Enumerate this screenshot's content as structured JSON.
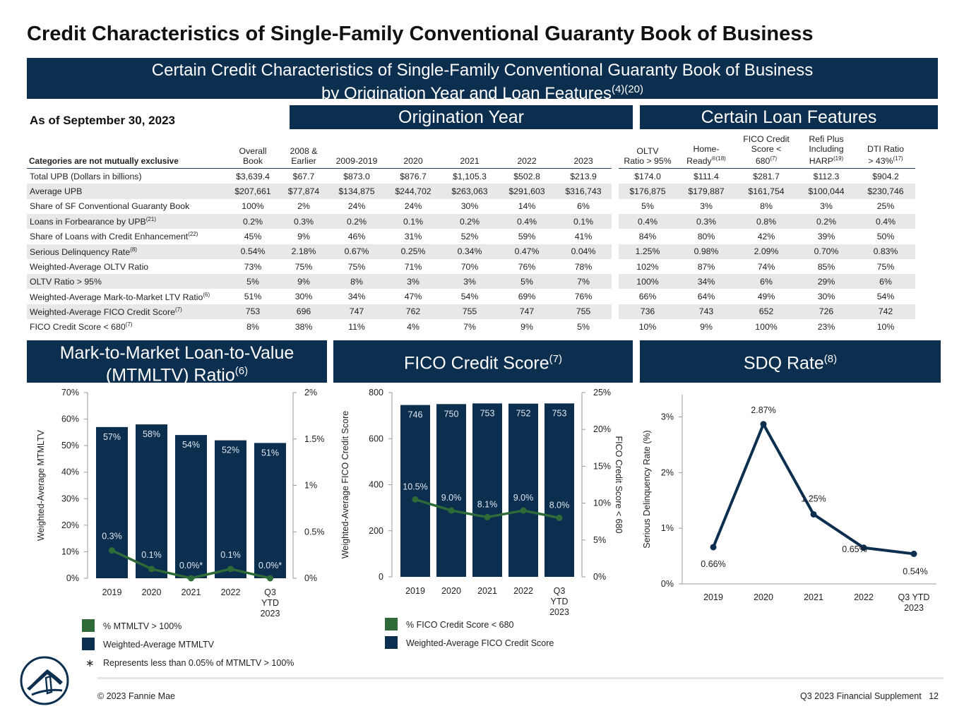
{
  "title": "Credit Characteristics of Single-Family Conventional Guaranty Book of Business",
  "banner": {
    "line1": "Certain Credit Characteristics of Single-Family Conventional Guaranty Book of Business",
    "line2": "by Origination Year and Loan Features",
    "line2_sup": "(4)(20)"
  },
  "as_of": "As of September 30, 2023",
  "origination_header": "Origination Year",
  "features_header": "Certain Loan Features",
  "table": {
    "category_header": "Categories are not mutually exclusive",
    "columns": [
      {
        "line1": "Overall",
        "line2": "Book"
      },
      {
        "line1": "2008 &",
        "line2": "Earlier"
      },
      {
        "line1": "",
        "line2": "2009-2019"
      },
      {
        "line1": "",
        "line2": "2020"
      },
      {
        "line1": "",
        "line2": "2021"
      },
      {
        "line1": "",
        "line2": "2022"
      },
      {
        "line1": "",
        "line2": "2023"
      },
      {
        "line1": "OLTV",
        "line2": "Ratio > 95%"
      },
      {
        "line1": "Home-",
        "line2": "Ready",
        "sup": "®(18)"
      },
      {
        "line0": "FICO Credit",
        "line1": "Score <",
        "line2": "680",
        "sup": "(7)"
      },
      {
        "line0": "Refi Plus",
        "line1": "Including",
        "line2": "HARP",
        "sup": "(19)"
      },
      {
        "line1": "DTI Ratio",
        "line2": "> 43%",
        "sup": "(17)"
      }
    ],
    "rows": [
      {
        "label": "Total UPB (Dollars in billions)",
        "sup": "",
        "values": [
          "$3,639.4",
          "$67.7",
          "$873.0",
          "$876.7",
          "$1,105.3",
          "$502.8",
          "$213.9",
          "$174.0",
          "$111.4",
          "$281.7",
          "$112.3",
          "$904.2"
        ]
      },
      {
        "label": "Average UPB",
        "sup": "",
        "values": [
          "$207,661",
          "$77,874",
          "$134,875",
          "$244,702",
          "$263,063",
          "$291,603",
          "$316,743",
          "$176,875",
          "$179,887",
          "$161,754",
          "$100,044",
          "$230,746"
        ]
      },
      {
        "label": "Share of SF Conventional Guaranty Book",
        "sup": "",
        "values": [
          "100%",
          "2%",
          "24%",
          "24%",
          "30%",
          "14%",
          "6%",
          "5%",
          "3%",
          "8%",
          "3%",
          "25%"
        ]
      },
      {
        "label": "Loans in Forbearance by UPB",
        "sup": "(21)",
        "values": [
          "0.2%",
          "0.3%",
          "0.2%",
          "0.1%",
          "0.2%",
          "0.4%",
          "0.1%",
          "0.4%",
          "0.3%",
          "0.8%",
          "0.2%",
          "0.4%"
        ]
      },
      {
        "label": "Share of Loans with Credit Enhancement",
        "sup": "(22)",
        "values": [
          "45%",
          "9%",
          "46%",
          "31%",
          "52%",
          "59%",
          "41%",
          "84%",
          "80%",
          "42%",
          "39%",
          "50%"
        ]
      },
      {
        "label": "Serious Delinquency Rate",
        "sup": "(8)",
        "values": [
          "0.54%",
          "2.18%",
          "0.67%",
          "0.25%",
          "0.34%",
          "0.47%",
          "0.04%",
          "1.25%",
          "0.98%",
          "2.09%",
          "0.70%",
          "0.83%"
        ]
      },
      {
        "label": "Weighted-Average OLTV Ratio",
        "sup": "",
        "values": [
          "73%",
          "75%",
          "75%",
          "71%",
          "70%",
          "76%",
          "78%",
          "102%",
          "87%",
          "74%",
          "85%",
          "75%"
        ]
      },
      {
        "label": "OLTV Ratio > 95%",
        "sup": "",
        "values": [
          "5%",
          "9%",
          "8%",
          "3%",
          "3%",
          "5%",
          "7%",
          "100%",
          "34%",
          "6%",
          "29%",
          "6%"
        ]
      },
      {
        "label": "Weighted-Average Mark-to-Market LTV Ratio",
        "sup": "(6)",
        "values": [
          "51%",
          "30%",
          "34%",
          "47%",
          "54%",
          "69%",
          "76%",
          "66%",
          "64%",
          "49%",
          "30%",
          "54%"
        ]
      },
      {
        "label": "Weighted-Average FICO Credit Score",
        "sup": "(7)",
        "values": [
          "753",
          "696",
          "747",
          "762",
          "755",
          "747",
          "755",
          "736",
          "743",
          "652",
          "726",
          "742"
        ]
      },
      {
        "label": "FICO Credit Score < 680",
        "sup": "(7)",
        "values": [
          "8%",
          "38%",
          "11%",
          "4%",
          "7%",
          "9%",
          "5%",
          "10%",
          "9%",
          "100%",
          "23%",
          "10%"
        ]
      }
    ]
  },
  "mtm_box": {
    "line1": "Mark-to-Market Loan-to-Value",
    "line2": "(MTMLTV) Ratio",
    "sup": "(6)"
  },
  "fico_box": {
    "text": "FICO Credit Score",
    "sup": "(7)"
  },
  "sdq_box": {
    "text": "SDQ Rate",
    "sup": "(8)"
  },
  "chart_data": [
    {
      "type": "bar",
      "categories": [
        "2019",
        "2020",
        "2021",
        "2022",
        "Q3 YTD 2023"
      ],
      "series": [
        {
          "name": "Weighted-Average MTMLTV",
          "type": "bar",
          "axis": "left",
          "values": [
            57,
            58,
            54,
            52,
            51
          ],
          "labels": [
            "57%",
            "58%",
            "54%",
            "52%",
            "51%"
          ]
        },
        {
          "name": "% MTMLTV > 100%",
          "type": "line",
          "axis": "right",
          "values": [
            0.3,
            0.1,
            0.0,
            0.1,
            0.0
          ],
          "labels": [
            "0.3%",
            "0.1%",
            "0.0%*",
            "0.1%",
            "0.0%*"
          ]
        }
      ],
      "ylabel": "Weighted-Average MTMLTV",
      "y_ticks": [
        "0%",
        "10%",
        "20%",
        "30%",
        "40%",
        "50%",
        "60%",
        "70%"
      ],
      "ylim": [
        0,
        70
      ],
      "y2_ticks": [
        "0%",
        "0.5%",
        "1%",
        "1.5%",
        "2%"
      ],
      "y2lim": [
        0,
        2
      ],
      "colors": {
        "bar": "#0c2e4f",
        "line": "#2e6b38"
      },
      "legend": [
        "% MTMLTV > 100%",
        "Weighted-Average MTMLTV"
      ],
      "footnote": "Represents less than 0.05% of MTMLTV > 100%",
      "footnote_symbol": "∗"
    },
    {
      "type": "bar",
      "categories": [
        "2019",
        "2020",
        "2021",
        "2022",
        "Q3 YTD 2023"
      ],
      "series": [
        {
          "name": "Weighted-Average FICO Credit Score",
          "type": "bar",
          "axis": "left",
          "values": [
            746,
            750,
            753,
            752,
            753
          ],
          "labels": [
            "746",
            "750",
            "753",
            "752",
            "753"
          ]
        },
        {
          "name": "% FICO Credit Score < 680",
          "type": "line",
          "axis": "right",
          "values": [
            10.5,
            9.0,
            8.1,
            9.0,
            8.0
          ],
          "labels": [
            "10.5%",
            "9.0%",
            "8.1%",
            "9.0%",
            "8.0%"
          ]
        }
      ],
      "ylabel": "Weighted-Average FICO Credit Score",
      "y2label": "FICO Credit Score < 680",
      "y_ticks": [
        "0",
        "200",
        "400",
        "600",
        "800"
      ],
      "ylim": [
        0,
        800
      ],
      "y2_ticks": [
        "0%",
        "5%",
        "10%",
        "15%",
        "20%",
        "25%"
      ],
      "y2lim": [
        0,
        25
      ],
      "colors": {
        "bar": "#0c2e4f",
        "line": "#2e6b38"
      },
      "legend": [
        "% FICO Credit Score < 680",
        "Weighted-Average FICO Credit Score"
      ]
    },
    {
      "type": "line",
      "categories": [
        "2019",
        "2020",
        "2021",
        "2022",
        "Q3 YTD 2023"
      ],
      "series": [
        {
          "name": "SDQ Rate",
          "values": [
            0.66,
            2.87,
            1.25,
            0.65,
            0.54
          ],
          "labels": [
            "0.66%",
            "2.87%",
            "1.25%",
            "0.65%",
            "0.54%"
          ]
        }
      ],
      "ylabel": "Serious Delinquency Rate (%)",
      "y_ticks": [
        "0%",
        "1%",
        "2%",
        "3%"
      ],
      "ylim": [
        0,
        3.4
      ],
      "colors": {
        "line": "#0c2e4f"
      }
    }
  ],
  "footer": {
    "copyright": "© 2023 Fannie Mae",
    "supplement": "Q3 2023 Financial Supplement   12"
  },
  "logo_icon": "fannie-mae-house-icon"
}
